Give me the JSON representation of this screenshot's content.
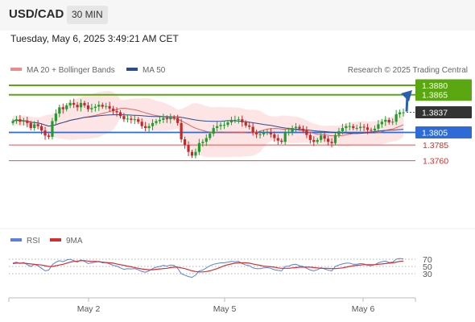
{
  "header": {
    "pair": "USD/CAD",
    "timeframe": "30 MIN"
  },
  "datetime": "Tuesday, May 6, 2025 3:49:21 AM CET",
  "chart_data": {
    "type": "candlestick",
    "legend": [
      {
        "name": "MA 20 + Bollinger Bands",
        "color": "#f08a8a"
      },
      {
        "name": "MA 50",
        "color": "#2a4d8f"
      }
    ],
    "attribution": "Research © 2025 Trading Central",
    "colors": {
      "up": "#1f9e2c",
      "down": "#c62828",
      "resistance": "#5aa712",
      "pivot": "#2e6bd6",
      "support": "#e05050",
      "last": "#333333",
      "band": "#fcd0d0"
    },
    "x_tick_labels": [
      "May 2",
      "May 5",
      "May 6"
    ],
    "price_levels": [
      {
        "label": "1.3880",
        "value": 1.388,
        "kind": "resistance"
      },
      {
        "label": "1.3865",
        "value": 1.3865,
        "kind": "resistance"
      },
      {
        "label": "1.3837",
        "value": 1.3837,
        "kind": "last"
      },
      {
        "label": "1.3805",
        "value": 1.3805,
        "kind": "pivot"
      },
      {
        "label": "1.3785",
        "value": 1.3785,
        "kind": "support"
      },
      {
        "label": "1.3760",
        "value": 1.376,
        "kind": "support"
      }
    ],
    "candles_close": [
      1.3823,
      1.3826,
      1.3822,
      1.3824,
      1.382,
      1.3812,
      1.3818,
      1.3815,
      1.3808,
      1.38,
      1.3798,
      1.3823,
      1.3835,
      1.3845,
      1.3842,
      1.3848,
      1.3852,
      1.3849,
      1.3845,
      1.3852,
      1.3848,
      1.3842,
      1.3844,
      1.3846,
      1.3849,
      1.3846,
      1.3847,
      1.3843,
      1.3839,
      1.3837,
      1.3831,
      1.3826,
      1.3827,
      1.3825,
      1.3826,
      1.3822,
      1.3815,
      1.3812,
      1.3815,
      1.382,
      1.3823,
      1.3825,
      1.3828,
      1.3826,
      1.3829,
      1.3828,
      1.382,
      1.3794,
      1.3785,
      1.3774,
      1.3768,
      1.3774,
      1.3788,
      1.379,
      1.3796,
      1.3803,
      1.3812,
      1.3815,
      1.3817,
      1.3817,
      1.3821,
      1.3825,
      1.3825,
      1.3826,
      1.3821,
      1.3816,
      1.3814,
      1.3805,
      1.3802,
      1.3802,
      1.3805,
      1.3805,
      1.3802,
      1.3796,
      1.3792,
      1.379,
      1.3805,
      1.3806,
      1.3812,
      1.3814,
      1.3811,
      1.3808,
      1.3801,
      1.3793,
      1.379,
      1.3793,
      1.38,
      1.3795,
      1.379,
      1.3788,
      1.3801,
      1.3807,
      1.3812,
      1.3815,
      1.3815,
      1.3812,
      1.3812,
      1.3814,
      1.3813,
      1.3809,
      1.3808,
      1.3811,
      1.3818,
      1.3822,
      1.3825,
      1.3821,
      1.3822,
      1.3834,
      1.3837,
      1.3837
    ],
    "rsi": {
      "levels": [
        70,
        50,
        30
      ],
      "series": [
        {
          "name": "RSI",
          "color": "#5b7fe0",
          "values": [
            59,
            62,
            58,
            61,
            55,
            50,
            56,
            52,
            45,
            38,
            40,
            55,
            62,
            66,
            63,
            68,
            70,
            66,
            62,
            68,
            64,
            58,
            60,
            62,
            64,
            60,
            61,
            57,
            53,
            51,
            46,
            42,
            44,
            43,
            44,
            41,
            36,
            34,
            38,
            44,
            48,
            50,
            53,
            51,
            54,
            53,
            45,
            30,
            26,
            22,
            20,
            26,
            38,
            40,
            46,
            52,
            56,
            58,
            60,
            60,
            62,
            64,
            63,
            64,
            58,
            54,
            52,
            46,
            44,
            44,
            46,
            47,
            45,
            41,
            39,
            38,
            50,
            51,
            55,
            56,
            52,
            50,
            45,
            40,
            38,
            41,
            47,
            43,
            40,
            38,
            50,
            54,
            57,
            59,
            59,
            56,
            56,
            58,
            57,
            53,
            52,
            55,
            60,
            63,
            65,
            61,
            62,
            70,
            72,
            71
          ]
        },
        {
          "name": "9MA",
          "color": "#d32f2f",
          "values": [
            58,
            59,
            59,
            59,
            58,
            57,
            56,
            55,
            54,
            52,
            50,
            50,
            52,
            54,
            56,
            59,
            62,
            64,
            65,
            66,
            66,
            65,
            64,
            64,
            63,
            62,
            61,
            60,
            59,
            57,
            55,
            53,
            51,
            49,
            47,
            45,
            43,
            42,
            41,
            41,
            42,
            43,
            44,
            45,
            47,
            48,
            48,
            46,
            44,
            41,
            38,
            36,
            35,
            35,
            36,
            38,
            41,
            44,
            48,
            52,
            55,
            57,
            59,
            60,
            60,
            60,
            59,
            57,
            55,
            53,
            51,
            50,
            49,
            48,
            46,
            45,
            45,
            45,
            46,
            47,
            48,
            48,
            48,
            48,
            47,
            46,
            45,
            45,
            45,
            44,
            44,
            45,
            46,
            48,
            50,
            52,
            53,
            54,
            55,
            55,
            55,
            55,
            56,
            57,
            58,
            59,
            60,
            62,
            64,
            65
          ]
        }
      ]
    }
  }
}
